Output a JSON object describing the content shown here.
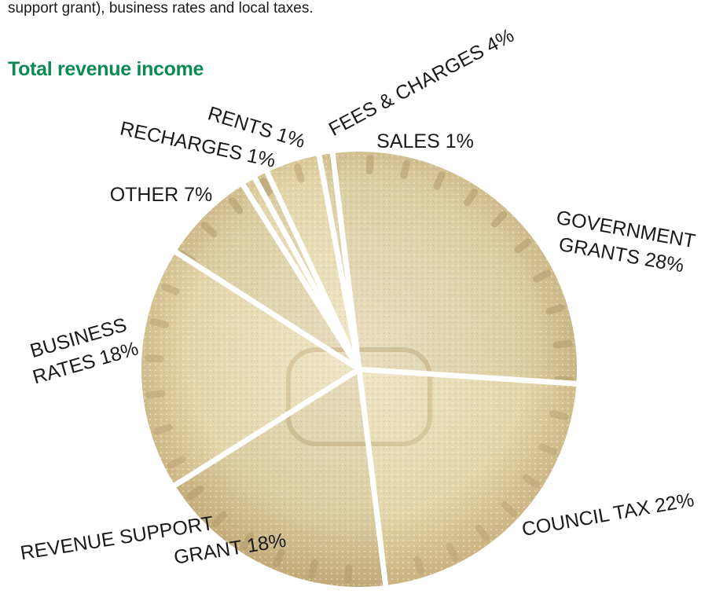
{
  "intro_text": "support grant), business rates and local taxes.",
  "chart_data": {
    "type": "pie",
    "title": "Total revenue income",
    "unit": "%",
    "colors": {
      "title": "#0b8a52",
      "crust_light": "#eadfb8",
      "crust_dark": "#b8a172",
      "separator": "#ffffff"
    },
    "slices": [
      {
        "id": "government-grants",
        "lines": [
          "GOVERNMENT",
          "GRANTS 28%"
        ],
        "value": 28
      },
      {
        "id": "council-tax",
        "lines": [
          "COUNCIL TAX 22%"
        ],
        "value": 22
      },
      {
        "id": "revenue-support-grant",
        "lines": [
          "REVENUE SUPPORT",
          "GRANT 18%"
        ],
        "value": 18
      },
      {
        "id": "business-rates",
        "lines": [
          "BUSINESS",
          "RATES 18%"
        ],
        "value": 18
      },
      {
        "id": "other",
        "lines": [
          "OTHER 7%"
        ],
        "value": 7
      },
      {
        "id": "recharges",
        "lines": [
          "RECHARGES 1%"
        ],
        "value": 1
      },
      {
        "id": "rents",
        "lines": [
          "RENTS 1%"
        ],
        "value": 1
      },
      {
        "id": "fees-charges",
        "lines": [
          "FEES & CHARGES 4%"
        ],
        "value": 4
      },
      {
        "id": "sales",
        "lines": [
          "SALES 1%"
        ],
        "value": 1
      }
    ]
  }
}
